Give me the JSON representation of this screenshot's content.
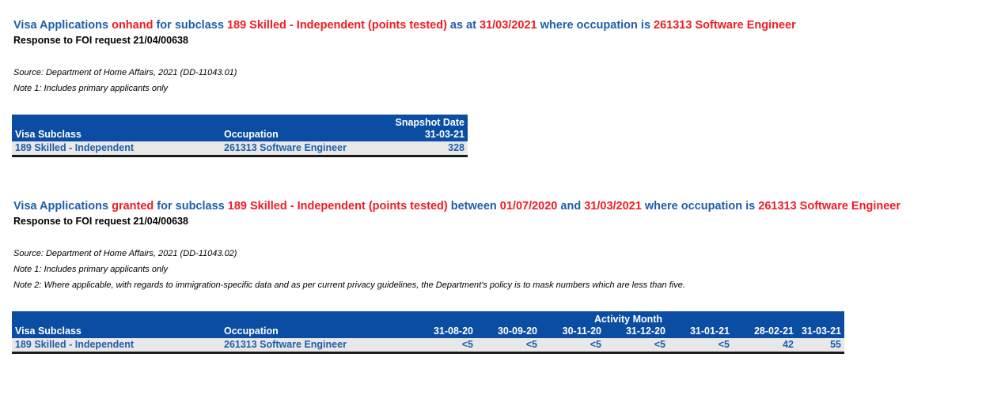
{
  "section1": {
    "title": {
      "p1": "Visa Applications ",
      "p2": "onhand",
      "p3": " for subclass ",
      "p4": "189 Skilled - Independent (points tested)",
      "p5": " as at ",
      "p6": "31/03/2021",
      "p7": " where occupation is ",
      "p8": "261313 Software Engineer"
    },
    "response": "Response to FOI request 21/04/00638",
    "source": "Source: Department of Home Affairs, 2021 (DD-11043.01)",
    "note1": "Note 1: Includes primary applicants only",
    "table": {
      "header_group": "Snapshot Date",
      "col_subclass": "Visa Subclass",
      "col_occupation": "Occupation",
      "col_date": "31-03-21",
      "row": {
        "subclass": "189 Skilled - Independent",
        "occupation": "261313 Software Engineer",
        "value": "328"
      }
    }
  },
  "section2": {
    "title": {
      "p1": "Visa Applications ",
      "p2": "granted",
      "p3": " for subclass ",
      "p4": "189 Skilled - Independent (points tested)",
      "p5": " between ",
      "p6": "01/07/2020",
      "p7": " and ",
      "p8": "31/03/2021",
      "p9": " where occupation is ",
      "p10": "261313 Software Engineer"
    },
    "response": "Response to FOI request 21/04/00638",
    "source": "Source: Department of Home Affairs, 2021 (DD-11043.02)",
    "note1": "Note 1: Includes primary applicants only",
    "note2": "Note 2: Where applicable, with regards to immigration-specific data and as per current privacy guidelines, the Department's policy is to mask numbers which are less than five.",
    "table": {
      "header_group": "Activity Month",
      "col_subclass": "Visa Subclass",
      "col_occupation": "Occupation",
      "months": [
        "31-08-20",
        "30-09-20",
        "30-11-20",
        "31-12-20",
        "31-01-21",
        "28-02-21",
        "31-03-21"
      ],
      "row": {
        "subclass": "189 Skilled - Independent",
        "occupation": "261313 Software Engineer",
        "values": [
          "<5",
          "<5",
          "<5",
          "<5",
          "<5",
          "42",
          "55"
        ]
      }
    }
  }
}
